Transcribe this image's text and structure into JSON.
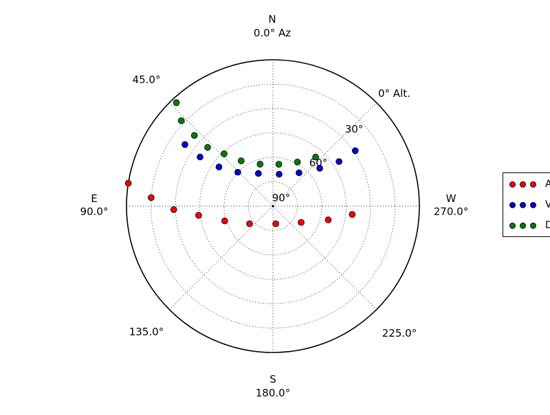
{
  "figure": {
    "background": "#ffffff",
    "outer_circle_color": "#000000",
    "grid_color": "#222222"
  },
  "compass_labels": [
    {
      "az": 0,
      "lines": [
        "N",
        "0.0° Az"
      ]
    },
    {
      "az": 45,
      "lines": [
        "45.0°"
      ]
    },
    {
      "az": 90,
      "lines": [
        "E",
        "90.0°"
      ]
    },
    {
      "az": 135,
      "lines": [
        "135.0°"
      ]
    },
    {
      "az": 180,
      "lines": [
        "S",
        "180.0°"
      ]
    },
    {
      "az": 225,
      "lines": [
        "225.0°"
      ]
    },
    {
      "az": 270,
      "lines": [
        "W",
        "270.0°"
      ]
    }
  ],
  "altitude_ticks": [
    {
      "alt": 0,
      "label": "0° Alt."
    },
    {
      "alt": 30,
      "label": "30°"
    },
    {
      "alt": 60,
      "label": "60°"
    },
    {
      "alt": 90,
      "label": "90°"
    }
  ],
  "legend": {
    "clipped_at_right_edge": true,
    "markers_per_entry": 3,
    "entries": [
      {
        "label": "A",
        "color": "#ff0000"
      },
      {
        "label": "V",
        "color": "#0000dd"
      },
      {
        "label": "D",
        "color": "#008000"
      }
    ]
  },
  "chart_data": {
    "type": "scatter",
    "projection": "polar_sky",
    "title": "",
    "azimuth_axis": {
      "orientation": "N at top, E at left, S at bottom, W at right",
      "direction_labels": [
        "N 0.0° Az",
        "45.0°",
        "E 90.0°",
        "135.0°",
        "S 180.0°",
        "225.0°",
        "W 270.0°"
      ],
      "spoke_step_deg": 45
    },
    "altitude_axis": {
      "range": [
        0,
        90
      ],
      "tick_labels": [
        "0° Alt.",
        "30°",
        "60°",
        "90°"
      ],
      "ring_step_deg": 15,
      "note": "altitude 90° at center, 0° at outer rim"
    },
    "grid": "dotted rings every 15° altitude, dotted spokes every 45° azimuth, solid horizon circle",
    "legend_position": "right edge, clipped",
    "series": [
      {
        "name": "A (label clipped)",
        "color": "#ff0000",
        "points_az_alt": [
          [
            81,
            0
          ],
          [
            86,
            15
          ],
          [
            92,
            29
          ],
          [
            97,
            44
          ],
          [
            107,
            59
          ],
          [
            127,
            72
          ],
          [
            189,
            79
          ],
          [
            240,
            70
          ],
          [
            256,
            55
          ],
          [
            264,
            41
          ]
        ]
      },
      {
        "name": "V (label clipped)",
        "color": "#0000dd",
        "points_az_alt": [
          [
            55,
            24
          ],
          [
            56,
            36
          ],
          [
            54,
            49
          ],
          [
            46,
            60
          ],
          [
            24,
            68
          ],
          [
            349,
            70
          ],
          [
            322,
            64
          ],
          [
            309,
            53
          ],
          [
            304,
            41
          ],
          [
            304,
            29
          ]
        ]
      },
      {
        "name": "D (label clipped)",
        "color": "#008000",
        "points_az_alt": [
          [
            43,
            3
          ],
          [
            47,
            13
          ],
          [
            48,
            25
          ],
          [
            48,
            36
          ],
          [
            43,
            46
          ],
          [
            35,
            56
          ],
          [
            17,
            63
          ],
          [
            352,
            64
          ],
          [
            331,
            59
          ],
          [
            319,
            50
          ]
        ]
      }
    ]
  }
}
